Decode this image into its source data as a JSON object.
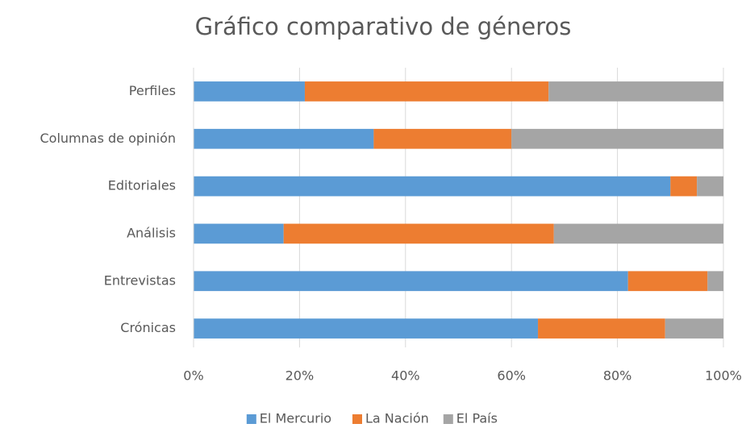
{
  "chart_data": {
    "type": "stacked_barh",
    "title": "Gráfico comparativo de géneros",
    "categories": [
      "Perfiles",
      "Columnas de opinión",
      "Editoriales",
      "Análisis",
      "Entrevistas",
      "Crónicas"
    ],
    "series": [
      {
        "name": "El Mercurio",
        "color": "#5b9bd5",
        "values": [
          21,
          34,
          90,
          17,
          82,
          65
        ]
      },
      {
        "name": "La Nación",
        "color": "#ed7d31",
        "values": [
          46,
          26,
          5,
          51,
          15,
          24
        ]
      },
      {
        "name": "El País",
        "color": "#a5a5a5",
        "values": [
          33,
          40,
          5,
          32,
          3,
          11
        ]
      }
    ],
    "xlim": [
      0,
      100
    ],
    "xticks": [
      {
        "value": 0,
        "label": "0%"
      },
      {
        "value": 20,
        "label": "20%"
      },
      {
        "value": 40,
        "label": "40%"
      },
      {
        "value": 60,
        "label": "60%"
      },
      {
        "value": 80,
        "label": "80%"
      },
      {
        "value": 100,
        "label": "100%"
      }
    ],
    "grid": true,
    "legend": "bottom"
  }
}
